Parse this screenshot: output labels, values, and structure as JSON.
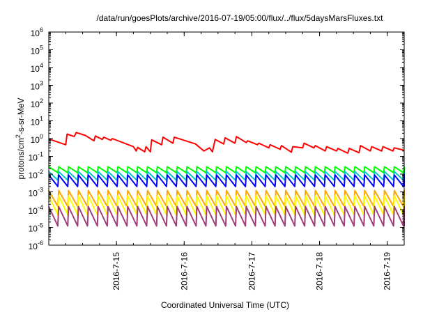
{
  "chart_data": {
    "type": "line",
    "title": "/data/run/goesPlots/archive/2016-07-19/05:00/flux/../flux/5daysMarsFluxes.txt",
    "xlabel": "Coordinated Universal Time (UTC)",
    "ylabel": {
      "base": "protons/cm",
      "sup": "2",
      "rest": "-s-sr-MeV"
    },
    "x_range": [
      "2016-07-14T00:00",
      "2016-07-19T06:00"
    ],
    "x_ticks": [
      "2016-7-15",
      "2016-7-16",
      "2016-7-17",
      "2016-7-18",
      "2016-7-19"
    ],
    "y_scale": "log",
    "y_range": [
      1e-06,
      1000000.0
    ],
    "y_ticks": [
      {
        "value": 1e-06,
        "base": "10",
        "exp": "-6"
      },
      {
        "value": 1e-05,
        "base": "10",
        "exp": "-5"
      },
      {
        "value": 0.0001,
        "base": "10",
        "exp": "-4"
      },
      {
        "value": 0.001,
        "base": "10",
        "exp": "-3"
      },
      {
        "value": 0.01,
        "base": "10",
        "exp": "-2"
      },
      {
        "value": 0.1,
        "base": "10",
        "exp": "-1"
      },
      {
        "value": 1,
        "base": "10",
        "exp": "0"
      },
      {
        "value": 10,
        "base": "10",
        "exp": "1"
      },
      {
        "value": 100,
        "base": "10",
        "exp": "2"
      },
      {
        "value": 1000,
        "base": "10",
        "exp": "3"
      },
      {
        "value": 10000,
        "base": "10",
        "exp": "4"
      },
      {
        "value": 100000,
        "base": "10",
        "exp": "5"
      },
      {
        "value": 1000000,
        "base": "10",
        "exp": "6"
      }
    ],
    "grid": false,
    "legend": "none",
    "series": [
      {
        "color": "#ff0000",
        "points": [
          [
            "2016-07-14T00:00",
            0.95
          ],
          [
            "2016-07-14T06:00",
            0.45
          ],
          [
            "2016-07-14T06:30",
            1.8
          ],
          [
            "2016-07-14T09:00",
            1.3
          ],
          [
            "2016-07-14T09:45",
            2.2
          ],
          [
            "2016-07-14T13:00",
            1.5
          ],
          [
            "2016-07-14T16:00",
            0.75
          ],
          [
            "2016-07-14T16:30",
            1.4
          ],
          [
            "2016-07-14T19:00",
            0.9
          ],
          [
            "2016-07-14T19:30",
            1.2
          ],
          [
            "2016-07-14T22:00",
            0.8
          ],
          [
            "2016-07-14T22:30",
            1.0
          ],
          [
            "2016-07-15T06:00",
            0.35
          ],
          [
            "2016-07-15T07:00",
            0.2
          ],
          [
            "2016-07-15T07:30",
            0.32
          ],
          [
            "2016-07-15T10:00",
            0.18
          ],
          [
            "2016-07-15T10:30",
            0.35
          ],
          [
            "2016-07-15T12:00",
            0.18
          ],
          [
            "2016-07-15T12:30",
            0.85
          ],
          [
            "2016-07-15T16:00",
            0.45
          ],
          [
            "2016-07-15T16:30",
            1.2
          ],
          [
            "2016-07-15T20:00",
            0.55
          ],
          [
            "2016-07-15T20:30",
            1.2
          ],
          [
            "2016-07-16T04:00",
            0.5
          ],
          [
            "2016-07-16T07:00",
            0.2
          ],
          [
            "2016-07-16T09:00",
            0.3
          ],
          [
            "2016-07-16T10:00",
            0.18
          ],
          [
            "2016-07-16T11:00",
            0.9
          ],
          [
            "2016-07-16T14:00",
            0.5
          ],
          [
            "2016-07-16T14:30",
            1.1
          ],
          [
            "2016-07-16T18:00",
            0.55
          ],
          [
            "2016-07-16T18:30",
            1.3
          ],
          [
            "2016-07-16T22:00",
            0.6
          ],
          [
            "2016-07-16T22:30",
            0.75
          ],
          [
            "2016-07-17T02:00",
            0.45
          ],
          [
            "2016-07-17T02:30",
            0.55
          ],
          [
            "2016-07-17T06:00",
            0.3
          ],
          [
            "2016-07-17T06:30",
            0.45
          ],
          [
            "2016-07-17T10:00",
            0.25
          ],
          [
            "2016-07-17T10:30",
            0.4
          ],
          [
            "2016-07-17T14:00",
            0.17
          ],
          [
            "2016-07-17T14:30",
            0.35
          ],
          [
            "2016-07-17T18:00",
            0.3
          ],
          [
            "2016-07-17T18:30",
            0.55
          ],
          [
            "2016-07-17T22:00",
            0.3
          ],
          [
            "2016-07-17T22:30",
            0.4
          ],
          [
            "2016-07-18T02:00",
            0.2
          ],
          [
            "2016-07-18T02:30",
            0.35
          ],
          [
            "2016-07-18T06:00",
            0.2
          ],
          [
            "2016-07-18T06:30",
            0.28
          ],
          [
            "2016-07-18T10:00",
            0.15
          ],
          [
            "2016-07-18T10:30",
            0.28
          ],
          [
            "2016-07-18T14:00",
            0.16
          ],
          [
            "2016-07-18T14:30",
            0.4
          ],
          [
            "2016-07-18T18:00",
            0.2
          ],
          [
            "2016-07-18T18:30",
            0.35
          ],
          [
            "2016-07-18T22:00",
            0.2
          ],
          [
            "2016-07-18T22:30",
            0.35
          ],
          [
            "2016-07-19T02:00",
            0.2
          ],
          [
            "2016-07-19T02:30",
            0.3
          ],
          [
            "2016-07-19T06:00",
            0.22
          ]
        ]
      },
      {
        "color": "#00ff00",
        "sawtooth": {
          "peak": 0.026,
          "trough": 0.012
        }
      },
      {
        "color": "#00c8c8",
        "sawtooth": {
          "peak": 0.014,
          "trough": 0.0045
        }
      },
      {
        "color": "#0000ff",
        "sawtooth": {
          "peak": 0.009,
          "trough": 0.002
        }
      },
      {
        "color": "#ffa500",
        "sawtooth": {
          "peak": 0.0012,
          "trough": 0.00015
        }
      },
      {
        "color": "#ffff00",
        "sawtooth": {
          "peak": 0.0006,
          "trough": 5e-05
        }
      },
      {
        "color": "#a03d78",
        "sawtooth": {
          "peak": 0.00015,
          "trough": 1.2e-05
        }
      }
    ],
    "sawtooth_cycle": {
      "start": "2016-07-14T00:00",
      "period_hours": 3.5
    }
  }
}
